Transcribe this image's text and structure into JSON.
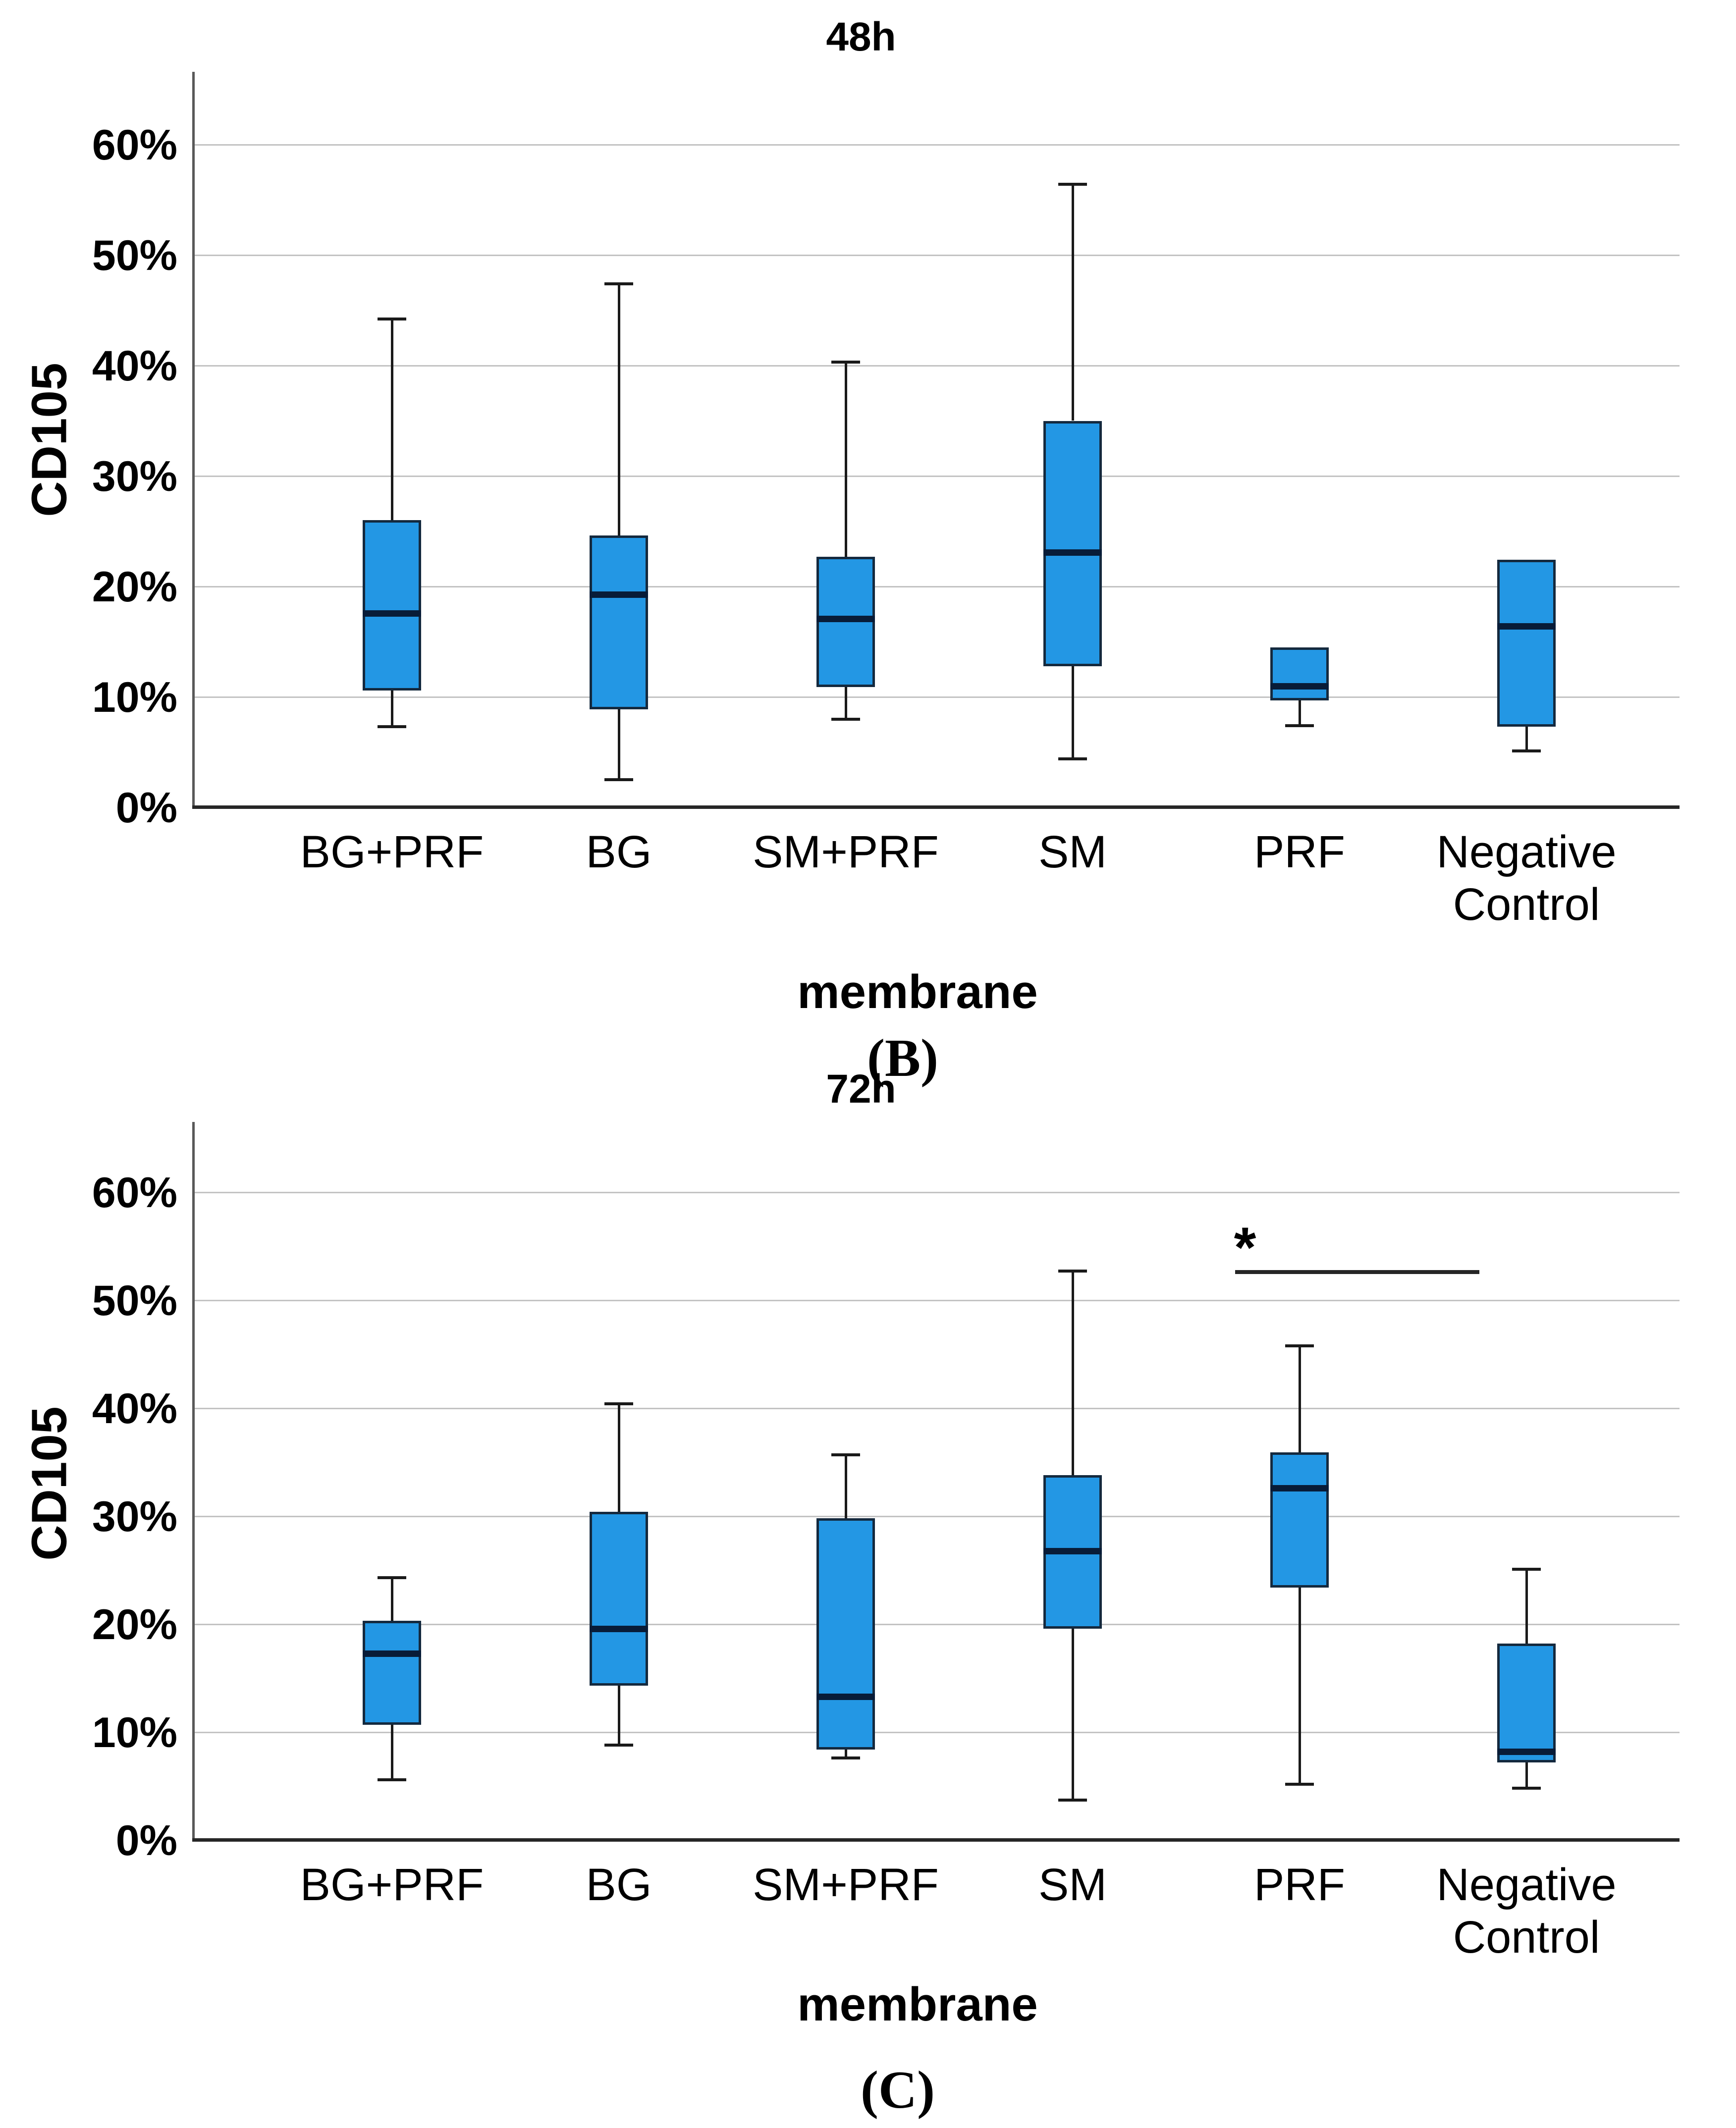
{
  "colors": {
    "box_fill": "#2397E4",
    "box_border": "#14293E",
    "median": "#081C38",
    "gridline": "#C3C3C3",
    "axis_left": "#595959",
    "axis_bottom": "#262626",
    "text": "#000000",
    "background": "#FFFFFF"
  },
  "chart_data": [
    {
      "type": "boxplot",
      "title": "48h",
      "xlabel": "membrane",
      "ylabel": "CD105",
      "panel_label": "(B)",
      "grid": true,
      "legend": "none",
      "ylim": [
        0,
        66.5
      ],
      "ytick_labels": [
        "60%",
        "50%",
        "40%",
        "30%",
        "20%",
        "10%",
        "0%"
      ],
      "categories": [
        "BG+PRF",
        "BG",
        "SM+PRF",
        "SM",
        "PRF",
        "Negative\nControl"
      ],
      "boxes": [
        {
          "category": "BG+PRF",
          "whisker_low": 7.3,
          "q1": 10.6,
          "median": 17.6,
          "q3": 26.0,
          "whisker_high": 44.2
        },
        {
          "category": "BG",
          "whisker_low": 2.5,
          "q1": 8.9,
          "median": 19.3,
          "q3": 24.6,
          "whisker_high": 47.4
        },
        {
          "category": "SM+PRF",
          "whisker_low": 8.0,
          "q1": 10.9,
          "median": 17.1,
          "q3": 22.7,
          "whisker_high": 40.3
        },
        {
          "category": "SM",
          "whisker_low": 4.4,
          "q1": 12.8,
          "median": 23.1,
          "q3": 35.0,
          "whisker_high": 56.4
        },
        {
          "category": "PRF",
          "whisker_low": 7.4,
          "q1": 9.7,
          "median": 11.0,
          "q3": 14.5,
          "whisker_high": 14.5
        },
        {
          "category": "Negative Control",
          "whisker_low": 5.1,
          "q1": 7.3,
          "median": 16.4,
          "q3": 22.4,
          "whisker_high": 22.4
        }
      ]
    },
    {
      "type": "boxplot",
      "title": "72h",
      "xlabel": "membrane",
      "ylabel": "CD105",
      "panel_label": "(C)",
      "grid": true,
      "legend": "none",
      "ylim": [
        0,
        66.5
      ],
      "ytick_labels": [
        "60%",
        "50%",
        "40%",
        "30%",
        "20%",
        "10%",
        "0%"
      ],
      "categories": [
        "BG+PRF",
        "BG",
        "SM+PRF",
        "SM",
        "PRF",
        "Negative\nControl"
      ],
      "boxes": [
        {
          "category": "BG+PRF",
          "whisker_low": 5.6,
          "q1": 10.7,
          "median": 17.3,
          "q3": 20.3,
          "whisker_high": 24.3
        },
        {
          "category": "BG",
          "whisker_low": 8.8,
          "q1": 14.3,
          "median": 19.6,
          "q3": 30.4,
          "whisker_high": 40.4
        },
        {
          "category": "SM+PRF",
          "whisker_low": 7.6,
          "q1": 8.4,
          "median": 13.3,
          "q3": 29.8,
          "whisker_high": 35.7
        },
        {
          "category": "SM",
          "whisker_low": 3.7,
          "q1": 19.6,
          "median": 26.8,
          "q3": 33.8,
          "whisker_high": 52.7
        },
        {
          "category": "PRF",
          "whisker_low": 5.2,
          "q1": 23.4,
          "median": 32.6,
          "q3": 35.9,
          "whisker_high": 45.8
        },
        {
          "category": "Negative Control",
          "whisker_low": 4.8,
          "q1": 7.2,
          "median": 8.2,
          "q3": 18.2,
          "whisker_high": 25.1
        }
      ],
      "significance": {
        "symbol": "*",
        "between": [
          "PRF",
          "Negative Control"
        ],
        "y_value": 52.8
      }
    }
  ]
}
